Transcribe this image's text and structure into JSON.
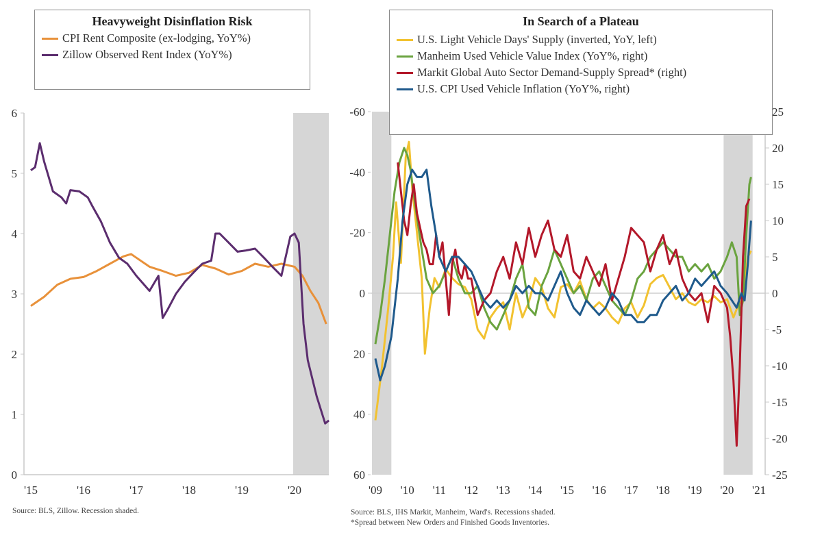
{
  "chart_data": [
    {
      "type": "line",
      "title": "Heavyweight Disinflation Risk",
      "xlabel": "",
      "ylabel": "",
      "x_tick_labels": [
        "'15",
        "'16",
        "'17",
        "'18",
        "'19",
        "'20"
      ],
      "x_ticks": [
        2015,
        2016,
        2017,
        2018,
        2019,
        2020
      ],
      "xlim": [
        2014.85,
        2020.65
      ],
      "ylim": [
        0,
        6
      ],
      "y_ticks": [
        0,
        1,
        2,
        3,
        4,
        5,
        6
      ],
      "recessions": [
        [
          2020.0,
          2020.65
        ]
      ],
      "legend_position": "top",
      "source": "Source:  BLS, Zillow. Recession shaded.",
      "series": [
        {
          "name": "CPI Rent Composite (ex-lodging, YoY%)",
          "color": "#e8913a",
          "x": [
            2015.0,
            2015.25,
            2015.5,
            2015.75,
            2016.0,
            2016.25,
            2016.5,
            2016.75,
            2016.9,
            2017.0,
            2017.25,
            2017.5,
            2017.75,
            2018.0,
            2018.25,
            2018.5,
            2018.75,
            2019.0,
            2019.25,
            2019.5,
            2019.75,
            2020.0,
            2020.15,
            2020.3,
            2020.45,
            2020.6
          ],
          "values": [
            2.8,
            2.95,
            3.15,
            3.25,
            3.28,
            3.38,
            3.5,
            3.62,
            3.66,
            3.6,
            3.45,
            3.38,
            3.3,
            3.35,
            3.48,
            3.42,
            3.32,
            3.38,
            3.5,
            3.45,
            3.5,
            3.45,
            3.3,
            3.05,
            2.85,
            2.5
          ]
        },
        {
          "name": "Zillow Observed Rent Index (YoY%)",
          "color": "#5b2d6e",
          "x": [
            2015.0,
            2015.08,
            2015.17,
            2015.25,
            2015.42,
            2015.58,
            2015.67,
            2015.75,
            2015.92,
            2016.08,
            2016.17,
            2016.33,
            2016.5,
            2016.67,
            2016.83,
            2017.0,
            2017.25,
            2017.42,
            2017.5,
            2017.6,
            2017.75,
            2017.92,
            2018.08,
            2018.25,
            2018.42,
            2018.5,
            2018.58,
            2018.75,
            2018.92,
            2019.08,
            2019.25,
            2019.42,
            2019.58,
            2019.75,
            2019.92,
            2020.0,
            2020.08,
            2020.17,
            2020.25,
            2020.42,
            2020.58,
            2020.65
          ],
          "values": [
            5.05,
            5.1,
            5.5,
            5.2,
            4.7,
            4.6,
            4.5,
            4.72,
            4.7,
            4.6,
            4.45,
            4.2,
            3.85,
            3.6,
            3.5,
            3.3,
            3.05,
            3.3,
            2.6,
            2.75,
            3.0,
            3.2,
            3.35,
            3.5,
            3.55,
            4.0,
            4.0,
            3.85,
            3.7,
            3.72,
            3.75,
            3.6,
            3.45,
            3.3,
            3.95,
            4.0,
            3.85,
            2.5,
            1.9,
            1.3,
            0.85,
            0.9
          ]
        }
      ]
    },
    {
      "type": "line",
      "title": "In Search of a Plateau",
      "xlabel": "",
      "ylabel_left": "",
      "ylabel_right": "",
      "x_tick_labels": [
        "'09",
        "'10",
        "'11",
        "'12",
        "'13",
        "'14",
        "'15",
        "'16",
        "'17",
        "'18",
        "'19",
        "'20",
        "'21"
      ],
      "x_ticks": [
        2009,
        2010,
        2011,
        2012,
        2013,
        2014,
        2015,
        2016,
        2017,
        2018,
        2019,
        2020,
        2021
      ],
      "xlim": [
        2009.0,
        2021.0
      ],
      "ylim_left": [
        60,
        -60
      ],
      "y_ticks_left": [
        -60,
        -40,
        -20,
        0,
        20,
        40,
        60
      ],
      "y_tick_labels_left": [
        "-60",
        "-40",
        "-20",
        "0",
        "20",
        "40",
        "60"
      ],
      "ylim_right": [
        -25,
        25
      ],
      "y_ticks_right": [
        25,
        20,
        15,
        10,
        5,
        0,
        -5,
        -10,
        -15,
        -20,
        -25
      ],
      "y_tick_labels_right": [
        "25",
        "20",
        "15",
        "10",
        "5",
        "0",
        "-5",
        "-10",
        "-15",
        "-20",
        "-25"
      ],
      "recessions": [
        [
          2009.0,
          2009.5
        ],
        [
          2020.0,
          2020.8
        ]
      ],
      "legend_position": "top-right",
      "source": "Source:  BLS, IHS Markit, Manheim, Ward's. Recessions shaded.",
      "footnote": "*Spread between New Orders and Finished Goods Inventories.",
      "series": [
        {
          "name": "U.S. Light Vehicle Days' Supply (inverted, YoY, left)",
          "color": "#f2c230",
          "axis": "left",
          "x": [
            2009.0,
            2009.2,
            2009.4,
            2009.55,
            2009.65,
            2009.8,
            2009.95,
            2010.05,
            2010.15,
            2010.3,
            2010.45,
            2010.55,
            2010.7,
            2010.85,
            2011.0,
            2011.2,
            2011.4,
            2011.6,
            2011.8,
            2012.0,
            2012.2,
            2012.4,
            2012.6,
            2012.8,
            2013.0,
            2013.2,
            2013.4,
            2013.6,
            2013.8,
            2014.0,
            2014.2,
            2014.4,
            2014.6,
            2014.8,
            2015.0,
            2015.2,
            2015.4,
            2015.6,
            2015.8,
            2016.0,
            2016.2,
            2016.4,
            2016.6,
            2016.8,
            2017.0,
            2017.2,
            2017.4,
            2017.6,
            2017.8,
            2018.0,
            2018.2,
            2018.4,
            2018.6,
            2018.8,
            2019.0,
            2019.2,
            2019.4,
            2019.6,
            2019.8,
            2020.0,
            2020.2,
            2020.35,
            2020.5,
            2020.65,
            2020.75
          ],
          "values": [
            42,
            25,
            5,
            -12,
            -30,
            -10,
            -45,
            -50,
            -35,
            -20,
            -5,
            20,
            5,
            -5,
            -2,
            -8,
            -5,
            -3,
            -2,
            2,
            12,
            15,
            8,
            5,
            3,
            12,
            0,
            8,
            3,
            -5,
            -2,
            5,
            8,
            -2,
            -3,
            0,
            -4,
            2,
            5,
            3,
            5,
            8,
            10,
            5,
            3,
            8,
            4,
            -3,
            -5,
            -6,
            -2,
            2,
            0,
            3,
            4,
            2,
            3,
            1,
            3,
            2,
            8,
            4,
            2,
            -12,
            -14
          ]
        },
        {
          "name": "Manheim Used Vehicle Value Index (YoY%, right)",
          "color": "#6aa33f",
          "axis": "right",
          "x": [
            2009.0,
            2009.15,
            2009.3,
            2009.45,
            2009.6,
            2009.75,
            2009.9,
            2010.0,
            2010.1,
            2010.25,
            2010.45,
            2010.6,
            2010.8,
            2011.0,
            2011.2,
            2011.4,
            2011.6,
            2011.8,
            2012.0,
            2012.2,
            2012.4,
            2012.6,
            2012.8,
            2013.0,
            2013.2,
            2013.4,
            2013.6,
            2013.8,
            2014.0,
            2014.2,
            2014.4,
            2014.6,
            2014.8,
            2015.0,
            2015.2,
            2015.4,
            2015.6,
            2015.8,
            2016.0,
            2016.2,
            2016.4,
            2016.6,
            2016.8,
            2017.0,
            2017.2,
            2017.4,
            2017.6,
            2017.8,
            2018.0,
            2018.2,
            2018.4,
            2018.6,
            2018.8,
            2019.0,
            2019.2,
            2019.4,
            2019.6,
            2019.8,
            2020.0,
            2020.15,
            2020.3,
            2020.4,
            2020.5,
            2020.6,
            2020.7,
            2020.75
          ],
          "values": [
            -7,
            -3,
            2,
            8,
            14,
            18,
            20,
            19,
            17,
            12,
            6,
            2,
            0,
            1,
            3,
            5,
            2,
            0,
            0,
            1,
            -2,
            -4,
            -5,
            -3,
            -1,
            2,
            4,
            -2,
            -3,
            1,
            3,
            6,
            4,
            2,
            0,
            1,
            -1,
            2,
            3,
            1,
            -1,
            -2,
            -3,
            -1,
            2,
            3,
            5,
            6,
            7,
            6,
            5,
            5,
            3,
            4,
            3,
            4,
            2,
            3,
            5,
            7,
            5,
            -3,
            -1,
            8,
            15,
            16
          ]
        },
        {
          "name": "Markit Global Auto Sector Demand-Supply Spread* (right)",
          "color": "#b3182a",
          "axis": "right",
          "x": [
            2009.7,
            2009.8,
            2009.9,
            2010.0,
            2010.1,
            2010.2,
            2010.3,
            2010.4,
            2010.5,
            2010.6,
            2010.7,
            2010.8,
            2010.9,
            2011.0,
            2011.1,
            2011.2,
            2011.3,
            2011.4,
            2011.5,
            2011.6,
            2011.7,
            2011.8,
            2011.9,
            2012.0,
            2012.2,
            2012.4,
            2012.6,
            2012.8,
            2013.0,
            2013.2,
            2013.4,
            2013.6,
            2013.8,
            2014.0,
            2014.2,
            2014.4,
            2014.6,
            2014.8,
            2015.0,
            2015.2,
            2015.4,
            2015.6,
            2015.8,
            2016.0,
            2016.2,
            2016.4,
            2016.6,
            2016.8,
            2017.0,
            2017.2,
            2017.4,
            2017.6,
            2017.8,
            2018.0,
            2018.2,
            2018.4,
            2018.6,
            2018.8,
            2019.0,
            2019.2,
            2019.4,
            2019.6,
            2019.8,
            2020.0,
            2020.1,
            2020.2,
            2020.3,
            2020.4,
            2020.5,
            2020.6,
            2020.7
          ],
          "values": [
            18,
            14,
            10,
            8,
            12,
            15,
            11,
            9,
            7,
            6,
            4,
            4,
            8,
            5,
            7,
            2,
            -3,
            4,
            6,
            3,
            2,
            4,
            2,
            2,
            -3,
            -1,
            0,
            3,
            5,
            2,
            7,
            4,
            9,
            5,
            8,
            10,
            6,
            5,
            8,
            3,
            2,
            5,
            3,
            1,
            4,
            -1,
            2,
            5,
            9,
            8,
            7,
            3,
            6,
            8,
            4,
            6,
            2,
            0,
            -1,
            0,
            -4,
            1,
            0,
            -2,
            -6,
            -12,
            -21,
            -10,
            5,
            12,
            13
          ]
        },
        {
          "name": "U.S. CPI Used Vehicle Inflation (YoY%, right)",
          "color": "#1f5a8c",
          "axis": "right",
          "x": [
            2009.0,
            2009.15,
            2009.3,
            2009.5,
            2009.7,
            2009.85,
            2010.0,
            2010.15,
            2010.3,
            2010.45,
            2010.6,
            2010.75,
            2010.9,
            2011.0,
            2011.2,
            2011.4,
            2011.6,
            2011.8,
            2012.0,
            2012.2,
            2012.4,
            2012.6,
            2012.8,
            2013.0,
            2013.2,
            2013.4,
            2013.6,
            2013.8,
            2014.0,
            2014.2,
            2014.4,
            2014.6,
            2014.8,
            2015.0,
            2015.2,
            2015.4,
            2015.6,
            2015.8,
            2016.0,
            2016.2,
            2016.4,
            2016.6,
            2016.8,
            2017.0,
            2017.2,
            2017.4,
            2017.6,
            2017.8,
            2018.0,
            2018.2,
            2018.4,
            2018.6,
            2018.8,
            2019.0,
            2019.2,
            2019.4,
            2019.6,
            2019.8,
            2020.0,
            2020.15,
            2020.3,
            2020.45,
            2020.55,
            2020.65,
            2020.75
          ],
          "values": [
            -9,
            -12,
            -10,
            -6,
            2,
            10,
            15,
            17,
            16,
            16,
            17,
            12,
            8,
            5,
            3,
            5,
            5,
            4,
            3,
            1,
            -1,
            -2,
            -1,
            -2,
            -1,
            1,
            0,
            1,
            0,
            0,
            -1,
            1,
            3,
            0,
            -2,
            -3,
            -1,
            -2,
            -3,
            -2,
            0,
            -1,
            -3,
            -3,
            -4,
            -4,
            -3,
            -3,
            -1,
            0,
            1,
            -1,
            0,
            2,
            1,
            2,
            3,
            1,
            0,
            -1,
            -2,
            0,
            -1,
            4,
            10
          ]
        }
      ]
    }
  ]
}
